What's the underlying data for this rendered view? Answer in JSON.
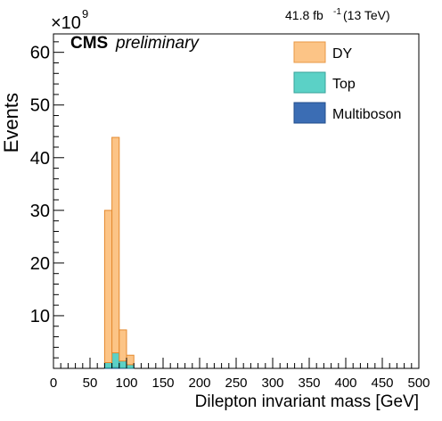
{
  "chart_data": {
    "type": "bar",
    "stacked": true,
    "title": "",
    "cms_label": "CMS",
    "cms_sublabel": "preliminary",
    "lumi_value": "41.8 fb",
    "lumi_exp": "-1",
    "lumi_energy": "(13 TeV)",
    "xlabel": "Dilepton invariant mass [GeV]",
    "ylabel": "Events",
    "y_multiplier_base": "×10",
    "y_multiplier_exp": "9",
    "xlim": [
      0,
      500
    ],
    "ylim": [
      0,
      63.5
    ],
    "x_major_ticks": [
      0,
      50,
      100,
      150,
      200,
      250,
      300,
      350,
      400,
      450,
      500
    ],
    "x_tick_labels": [
      "0",
      "50",
      "100",
      "150",
      "200",
      "250",
      "300",
      "350",
      "400",
      "450",
      "500"
    ],
    "y_major_ticks": [
      10,
      20,
      30,
      40,
      50,
      60
    ],
    "y_tick_labels": [
      "10",
      "20",
      "30",
      "40",
      "50",
      "60"
    ],
    "bin_width": 10,
    "bin_edges_start": [
      70,
      80,
      90,
      100
    ],
    "series": [
      {
        "name": "Multiboson",
        "color": "#3b6db4",
        "values": [
          0.1,
          0.15,
          0.1,
          0.05
        ]
      },
      {
        "name": "Top",
        "color": "#5bd1c6",
        "values": [
          1.0,
          2.8,
          1.3,
          0.65
        ]
      },
      {
        "name": "DY",
        "color": "#fcc486",
        "values": [
          28.9,
          40.9,
          5.9,
          1.8
        ]
      }
    ],
    "legend": [
      {
        "label": "DY",
        "color": "#fcc486",
        "border": "#e89846"
      },
      {
        "label": "Top",
        "color": "#5bd1c6",
        "border": "#3aa39b"
      },
      {
        "label": "Multiboson",
        "color": "#3b6db4",
        "border": "#234f8c"
      }
    ],
    "legend_position": "top-right",
    "grid": false
  }
}
